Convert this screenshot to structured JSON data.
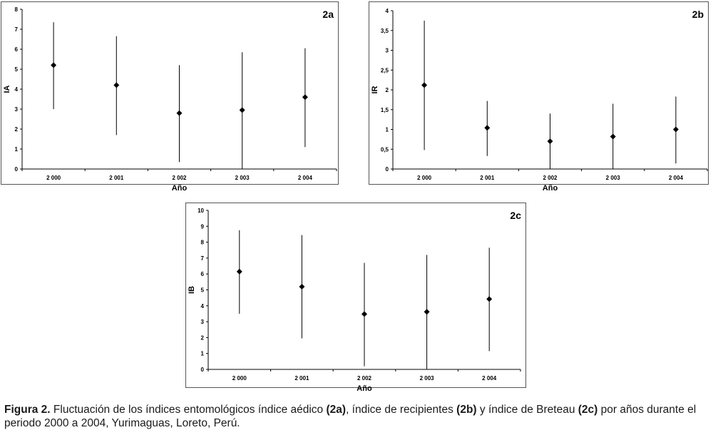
{
  "chart_data": [
    {
      "type": "scatter",
      "error_bars": true,
      "panel_label": "2a",
      "xlabel": "Año",
      "ylabel": "IA",
      "categories": [
        "2 000",
        "2 001",
        "2 002",
        "2 003",
        "2 004"
      ],
      "values": [
        5.2,
        4.2,
        2.8,
        2.95,
        3.6
      ],
      "lower": [
        3.0,
        1.7,
        0.35,
        0.0,
        1.1
      ],
      "upper": [
        7.35,
        6.65,
        5.2,
        5.85,
        6.05
      ],
      "ylim": [
        0,
        8
      ],
      "yticks": [
        "0",
        "1",
        "2",
        "3",
        "4",
        "5",
        "6",
        "7",
        "8"
      ],
      "grid": false
    },
    {
      "type": "scatter",
      "error_bars": true,
      "panel_label": "2b",
      "xlabel": "Año",
      "ylabel": "IR",
      "categories": [
        "2 000",
        "2 001",
        "2 002",
        "2 003",
        "2 004"
      ],
      "values": [
        2.12,
        1.04,
        0.7,
        0.82,
        1.0
      ],
      "lower": [
        0.48,
        0.33,
        0.0,
        0.0,
        0.14
      ],
      "upper": [
        3.75,
        1.72,
        1.4,
        1.65,
        1.83
      ],
      "ylim": [
        0,
        4
      ],
      "yticks": [
        "0",
        "0,5",
        "1",
        "1,5",
        "2",
        "2,5",
        "3",
        "3,5",
        "4"
      ],
      "grid": false
    },
    {
      "type": "scatter",
      "error_bars": true,
      "panel_label": "2c",
      "xlabel": "Año",
      "ylabel": "IB",
      "categories": [
        "2 000",
        "2 001",
        "2 002",
        "2 003",
        "2 004"
      ],
      "values": [
        6.15,
        5.2,
        3.48,
        3.62,
        4.42
      ],
      "lower": [
        3.5,
        1.95,
        0.2,
        0.0,
        1.15
      ],
      "upper": [
        8.75,
        8.45,
        6.7,
        7.2,
        7.65
      ],
      "ylim": [
        0,
        10
      ],
      "yticks": [
        "0",
        "1",
        "2",
        "3",
        "4",
        "5",
        "6",
        "7",
        "8",
        "9",
        "10"
      ],
      "grid": false
    }
  ],
  "caption": {
    "label": "Figura 2.",
    "p1": " Fluctuación de los índices entomológicos índice aédico ",
    "b1": "(2a)",
    "p2": ", índice de recipientes ",
    "b2": "(2b)",
    "p3": " y índice de Breteau ",
    "b3": "(2c)",
    "p4": " por años durante el periodo 2000 a 2004, Yurimaguas, Loreto, Perú."
  },
  "colors": {
    "axis": "#000000",
    "marker": "#000000",
    "frame": "#555555",
    "caption": "#1a1a1a"
  }
}
